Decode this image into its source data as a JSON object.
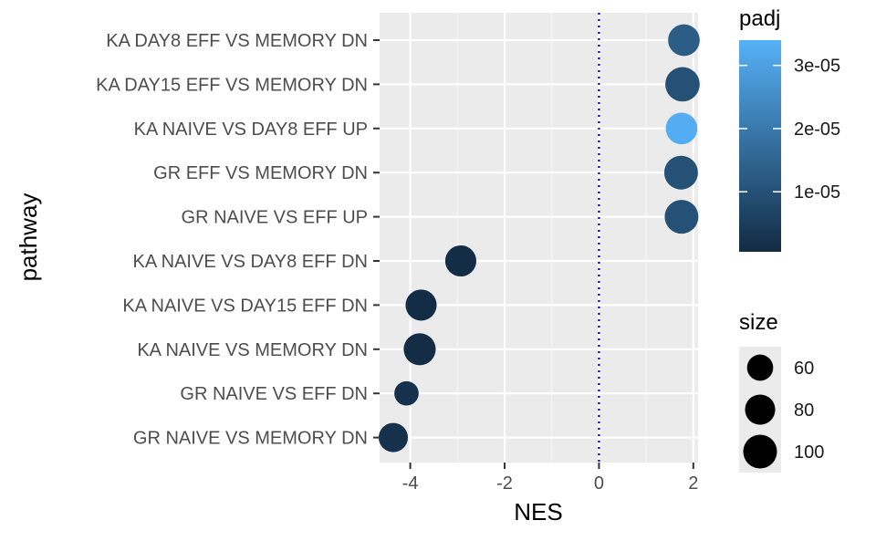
{
  "chart_data": {
    "type": "scatter",
    "xlabel": "NES",
    "ylabel": "pathway",
    "xlim": [
      -4.65,
      2.1
    ],
    "x_ticks": [
      -4,
      -2,
      0,
      2
    ],
    "x_tick_labels": [
      "-4",
      "-2",
      "0",
      "2"
    ],
    "reference_line": {
      "x": 0,
      "style": "dotted",
      "color": "#0000cd"
    },
    "grid": true,
    "categories": [
      "KA DAY8 EFF VS MEMORY DN",
      "KA DAY15 EFF VS MEMORY DN",
      "KA NAIVE VS DAY8 EFF UP",
      "GR EFF VS MEMORY DN",
      "GR NAIVE VS EFF UP",
      "KA NAIVE VS DAY8 EFF DN",
      "KA NAIVE VS DAY15 EFF DN",
      "KA NAIVE VS MEMORY DN",
      "GR NAIVE VS EFF DN",
      "GR NAIVE VS MEMORY DN"
    ],
    "points": [
      {
        "pathway": "KA DAY8 EFF VS MEMORY DN",
        "NES": 1.8,
        "padj": 1.3e-05,
        "size": 88
      },
      {
        "pathway": "KA DAY15 EFF VS MEMORY DN",
        "NES": 1.77,
        "padj": 1e-05,
        "size": 104
      },
      {
        "pathway": "KA NAIVE VS DAY8 EFF UP",
        "NES": 1.75,
        "padj": 3.3e-05,
        "size": 88
      },
      {
        "pathway": "GR EFF VS MEMORY DN",
        "NES": 1.74,
        "padj": 1e-05,
        "size": 100
      },
      {
        "pathway": "GR NAIVE VS EFF UP",
        "NES": 1.75,
        "padj": 1e-05,
        "size": 100
      },
      {
        "pathway": "KA NAIVE VS DAY8 EFF DN",
        "NES": -2.93,
        "padj": 1e-06,
        "size": 85
      },
      {
        "pathway": "KA NAIVE VS DAY15 EFF DN",
        "NES": -3.77,
        "padj": 1e-06,
        "size": 85
      },
      {
        "pathway": "KA NAIVE VS MEMORY DN",
        "NES": -3.8,
        "padj": 1e-06,
        "size": 90
      },
      {
        "pathway": "GR NAIVE VS EFF DN",
        "NES": -4.08,
        "padj": 2e-06,
        "size": 52
      },
      {
        "pathway": "GR NAIVE VS MEMORY DN",
        "NES": -4.36,
        "padj": 2e-06,
        "size": 75
      }
    ],
    "color_legend": {
      "title": "padj",
      "breaks": [
        3e-05,
        2e-05,
        1e-05
      ],
      "labels": [
        "3e-05",
        "2e-05",
        "1e-05"
      ],
      "range": [
        5e-07,
        3.4e-05
      ],
      "low_color": "#132b43",
      "high_color": "#56b1f7"
    },
    "size_legend": {
      "title": "size",
      "breaks": [
        60,
        80,
        100
      ],
      "labels": [
        "60",
        "80",
        "100"
      ],
      "color": "#000000"
    },
    "colors": {
      "panel_background": "#ebebeb",
      "grid_major": "#ffffff",
      "grid_minor": "#f5f5f5"
    }
  }
}
